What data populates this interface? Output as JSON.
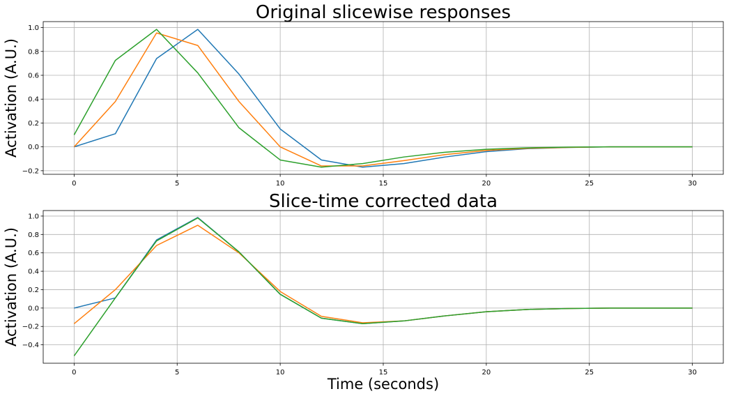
{
  "chart_data": [
    {
      "type": "line",
      "title": "Original slicewise responses",
      "xlabel": "",
      "ylabel": "Activation (A.U.)",
      "xlim": [
        -1.5,
        31.5
      ],
      "ylim": [
        -0.23,
        1.05
      ],
      "xticks": [
        0,
        5,
        10,
        15,
        20,
        25,
        30
      ],
      "yticks": [
        -0.2,
        0.0,
        0.2,
        0.4,
        0.6,
        0.8,
        1.0
      ],
      "ytick_labels": [
        "−0.2",
        "0.0",
        "0.2",
        "0.4",
        "0.6",
        "0.8",
        "1.0"
      ],
      "grid": true,
      "x": [
        0,
        2,
        4,
        6,
        8,
        10,
        12,
        14,
        16,
        18,
        20,
        22,
        24,
        26,
        28,
        30
      ],
      "series": [
        {
          "color": "#1f77b4",
          "values": [
            0.0,
            0.11,
            0.74,
            0.985,
            0.61,
            0.15,
            -0.11,
            -0.17,
            -0.14,
            -0.085,
            -0.04,
            -0.015,
            -0.005,
            0.0,
            0.0,
            0.0
          ]
        },
        {
          "color": "#ff7f0e",
          "values": [
            0.0,
            0.38,
            0.955,
            0.85,
            0.38,
            0.0,
            -0.16,
            -0.16,
            -0.115,
            -0.065,
            -0.03,
            -0.012,
            -0.004,
            0.0,
            0.0,
            0.0
          ]
        },
        {
          "color": "#2ca02c",
          "values": [
            0.1,
            0.725,
            0.985,
            0.62,
            0.16,
            -0.11,
            -0.17,
            -0.14,
            -0.085,
            -0.045,
            -0.02,
            -0.008,
            -0.002,
            0.0,
            0.0,
            0.0
          ]
        }
      ]
    },
    {
      "type": "line",
      "title": "Slice-time corrected data",
      "xlabel": "Time (seconds)",
      "ylabel": "Activation (A.U.)",
      "xlim": [
        -1.5,
        31.5
      ],
      "ylim": [
        -0.6,
        1.06
      ],
      "xticks": [
        0,
        5,
        10,
        15,
        20,
        25,
        30
      ],
      "yticks": [
        -0.4,
        -0.2,
        0.0,
        0.2,
        0.4,
        0.6,
        0.8,
        1.0
      ],
      "ytick_labels": [
        "−0.4",
        "−0.2",
        "0.0",
        "0.2",
        "0.4",
        "0.6",
        "0.8",
        "1.0"
      ],
      "grid": true,
      "x": [
        0,
        2,
        4,
        6,
        8,
        10,
        12,
        14,
        16,
        18,
        20,
        22,
        24,
        26,
        28,
        30
      ],
      "series": [
        {
          "color": "#1f77b4",
          "values": [
            0.0,
            0.11,
            0.74,
            0.985,
            0.61,
            0.15,
            -0.11,
            -0.17,
            -0.14,
            -0.085,
            -0.04,
            -0.015,
            -0.005,
            0.0,
            0.0,
            0.0
          ]
        },
        {
          "color": "#ff7f0e",
          "values": [
            -0.17,
            0.2,
            0.68,
            0.9,
            0.6,
            0.18,
            -0.09,
            -0.16,
            -0.14,
            -0.085,
            -0.04,
            -0.015,
            -0.005,
            0.0,
            0.0,
            0.0
          ]
        },
        {
          "color": "#2ca02c",
          "values": [
            -0.52,
            0.11,
            0.73,
            0.98,
            0.61,
            0.15,
            -0.11,
            -0.17,
            -0.14,
            -0.085,
            -0.04,
            -0.015,
            -0.005,
            0.0,
            0.0,
            0.0
          ]
        }
      ]
    }
  ]
}
